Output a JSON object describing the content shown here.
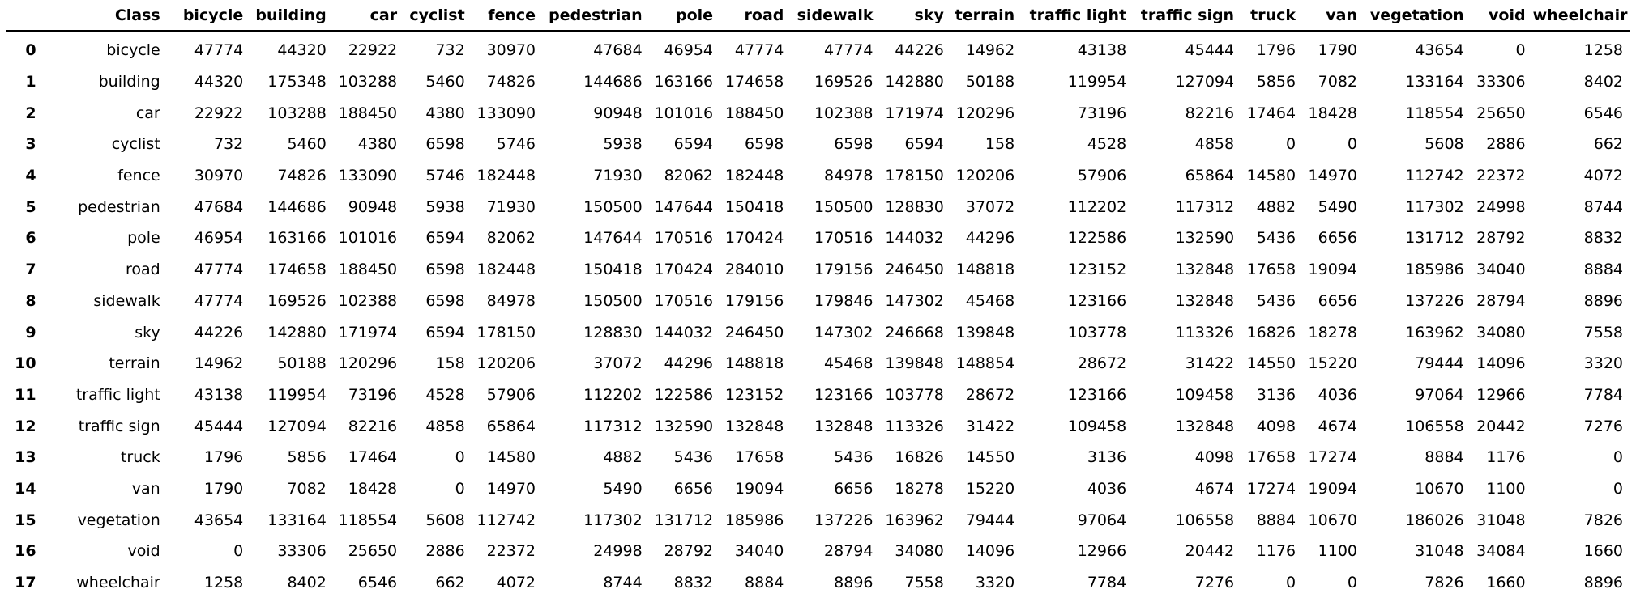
{
  "table": {
    "columns": [
      "",
      "Class",
      "bicycle",
      "building",
      "car",
      "cyclist",
      "fence",
      "pedestrian",
      "pole",
      "road",
      "sidewalk",
      "sky",
      "terrain",
      "traffic light",
      "traffic sign",
      "truck",
      "van",
      "vegetation",
      "void",
      "wheelchair"
    ],
    "rows": [
      [
        "0",
        "bicycle",
        "47774",
        "44320",
        "22922",
        "732",
        "30970",
        "47684",
        "46954",
        "47774",
        "47774",
        "44226",
        "14962",
        "43138",
        "45444",
        "1796",
        "1790",
        "43654",
        "0",
        "1258"
      ],
      [
        "1",
        "building",
        "44320",
        "175348",
        "103288",
        "5460",
        "74826",
        "144686",
        "163166",
        "174658",
        "169526",
        "142880",
        "50188",
        "119954",
        "127094",
        "5856",
        "7082",
        "133164",
        "33306",
        "8402"
      ],
      [
        "2",
        "car",
        "22922",
        "103288",
        "188450",
        "4380",
        "133090",
        "90948",
        "101016",
        "188450",
        "102388",
        "171974",
        "120296",
        "73196",
        "82216",
        "17464",
        "18428",
        "118554",
        "25650",
        "6546"
      ],
      [
        "3",
        "cyclist",
        "732",
        "5460",
        "4380",
        "6598",
        "5746",
        "5938",
        "6594",
        "6598",
        "6598",
        "6594",
        "158",
        "4528",
        "4858",
        "0",
        "0",
        "5608",
        "2886",
        "662"
      ],
      [
        "4",
        "fence",
        "30970",
        "74826",
        "133090",
        "5746",
        "182448",
        "71930",
        "82062",
        "182448",
        "84978",
        "178150",
        "120206",
        "57906",
        "65864",
        "14580",
        "14970",
        "112742",
        "22372",
        "4072"
      ],
      [
        "5",
        "pedestrian",
        "47684",
        "144686",
        "90948",
        "5938",
        "71930",
        "150500",
        "147644",
        "150418",
        "150500",
        "128830",
        "37072",
        "112202",
        "117312",
        "4882",
        "5490",
        "117302",
        "24998",
        "8744"
      ],
      [
        "6",
        "pole",
        "46954",
        "163166",
        "101016",
        "6594",
        "82062",
        "147644",
        "170516",
        "170424",
        "170516",
        "144032",
        "44296",
        "122586",
        "132590",
        "5436",
        "6656",
        "131712",
        "28792",
        "8832"
      ],
      [
        "7",
        "road",
        "47774",
        "174658",
        "188450",
        "6598",
        "182448",
        "150418",
        "170424",
        "284010",
        "179156",
        "246450",
        "148818",
        "123152",
        "132848",
        "17658",
        "19094",
        "185986",
        "34040",
        "8884"
      ],
      [
        "8",
        "sidewalk",
        "47774",
        "169526",
        "102388",
        "6598",
        "84978",
        "150500",
        "170516",
        "179156",
        "179846",
        "147302",
        "45468",
        "123166",
        "132848",
        "5436",
        "6656",
        "137226",
        "28794",
        "8896"
      ],
      [
        "9",
        "sky",
        "44226",
        "142880",
        "171974",
        "6594",
        "178150",
        "128830",
        "144032",
        "246450",
        "147302",
        "246668",
        "139848",
        "103778",
        "113326",
        "16826",
        "18278",
        "163962",
        "34080",
        "7558"
      ],
      [
        "10",
        "terrain",
        "14962",
        "50188",
        "120296",
        "158",
        "120206",
        "37072",
        "44296",
        "148818",
        "45468",
        "139848",
        "148854",
        "28672",
        "31422",
        "14550",
        "15220",
        "79444",
        "14096",
        "3320"
      ],
      [
        "11",
        "traffic light",
        "43138",
        "119954",
        "73196",
        "4528",
        "57906",
        "112202",
        "122586",
        "123152",
        "123166",
        "103778",
        "28672",
        "123166",
        "109458",
        "3136",
        "4036",
        "97064",
        "12966",
        "7784"
      ],
      [
        "12",
        "traffic sign",
        "45444",
        "127094",
        "82216",
        "4858",
        "65864",
        "117312",
        "132590",
        "132848",
        "132848",
        "113326",
        "31422",
        "109458",
        "132848",
        "4098",
        "4674",
        "106558",
        "20442",
        "7276"
      ],
      [
        "13",
        "truck",
        "1796",
        "5856",
        "17464",
        "0",
        "14580",
        "4882",
        "5436",
        "17658",
        "5436",
        "16826",
        "14550",
        "3136",
        "4098",
        "17658",
        "17274",
        "8884",
        "1176",
        "0"
      ],
      [
        "14",
        "van",
        "1790",
        "7082",
        "18428",
        "0",
        "14970",
        "5490",
        "6656",
        "19094",
        "6656",
        "18278",
        "15220",
        "4036",
        "4674",
        "17274",
        "19094",
        "10670",
        "1100",
        "0"
      ],
      [
        "15",
        "vegetation",
        "43654",
        "133164",
        "118554",
        "5608",
        "112742",
        "117302",
        "131712",
        "185986",
        "137226",
        "163962",
        "79444",
        "97064",
        "106558",
        "8884",
        "10670",
        "186026",
        "31048",
        "7826"
      ],
      [
        "16",
        "void",
        "0",
        "33306",
        "25650",
        "2886",
        "22372",
        "24998",
        "28792",
        "34040",
        "28794",
        "34080",
        "14096",
        "12966",
        "20442",
        "1176",
        "1100",
        "31048",
        "34084",
        "1660"
      ],
      [
        "17",
        "wheelchair",
        "1258",
        "8402",
        "6546",
        "662",
        "4072",
        "8744",
        "8832",
        "8884",
        "8896",
        "7558",
        "3320",
        "7784",
        "7276",
        "0",
        "0",
        "7826",
        "1660",
        "8896"
      ]
    ]
  }
}
